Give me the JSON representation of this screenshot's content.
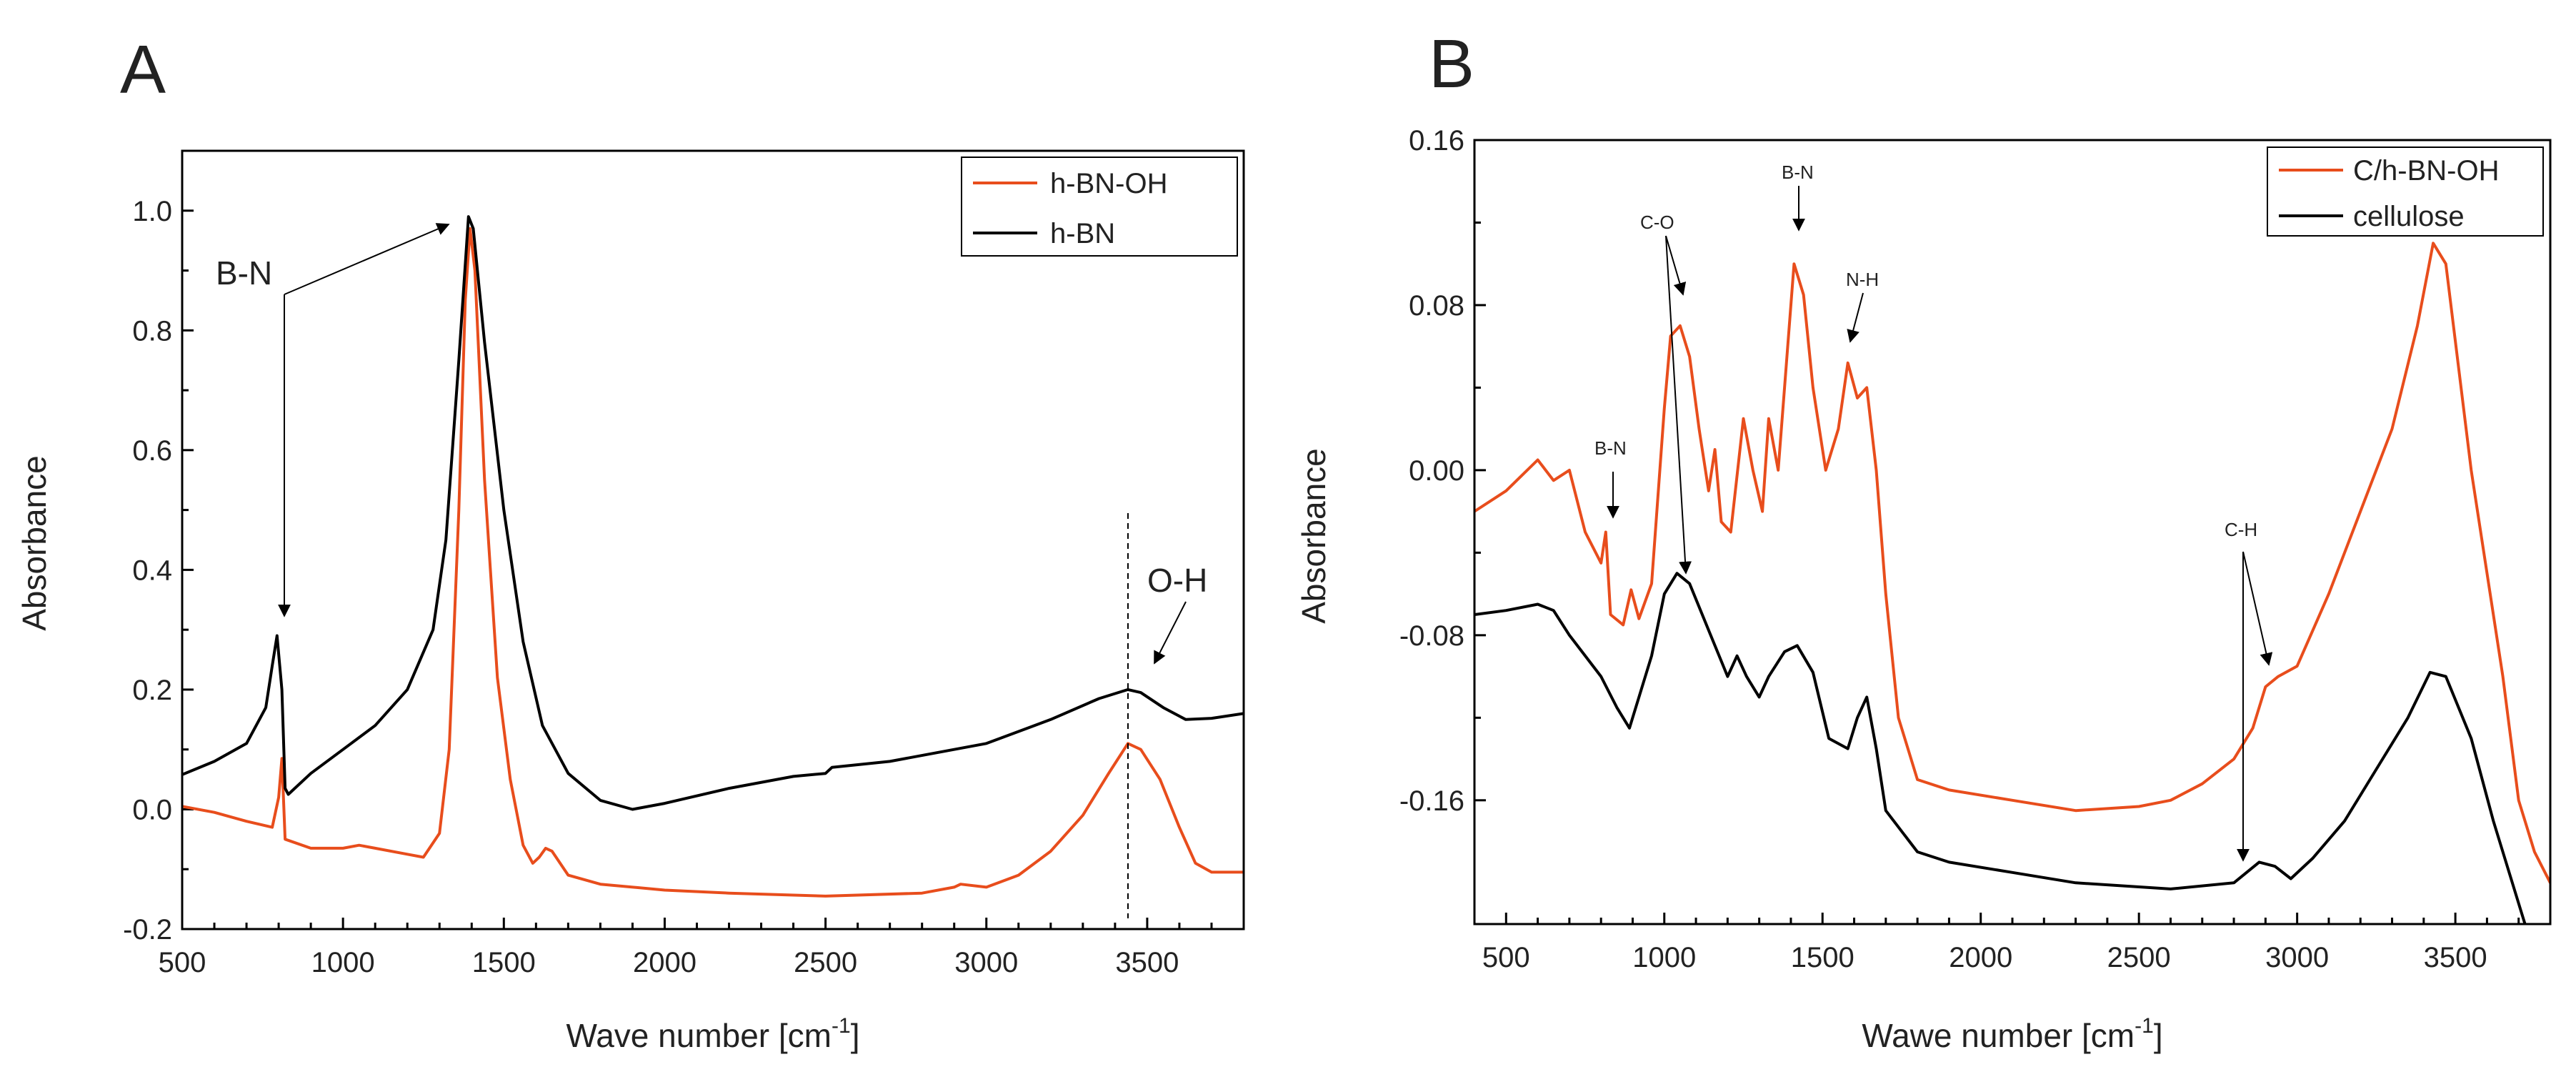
{
  "chart_data": [
    {
      "type": "line",
      "panel": "A",
      "xlabel": "Wave number [cm",
      "xlabel_sup": "-1",
      "xlabel_tail": "]",
      "ylabel": "Absorbance",
      "xlim": [
        500,
        3800
      ],
      "ylim": [
        -0.2,
        1.1
      ],
      "xticks": [
        500,
        1000,
        1500,
        2000,
        2500,
        3000,
        3500
      ],
      "xtick_labels": [
        "500",
        "1000",
        "1500",
        "2000",
        "2500",
        "3000",
        "3500"
      ],
      "yticks": [
        -0.2,
        0.0,
        0.2,
        0.4,
        0.6,
        0.8,
        1.0
      ],
      "ytick_labels": [
        "-0.2",
        "0.0",
        "0.2",
        "0.4",
        "0.6",
        "0.8",
        "1.0"
      ],
      "legend_position": "top-right",
      "series": [
        {
          "name": "h-BN-OH",
          "color": "#e84d1c",
          "points": [
            [
              500,
              0.005
            ],
            [
              600,
              -0.005
            ],
            [
              700,
              -0.02
            ],
            [
              780,
              -0.03
            ],
            [
              800,
              0.02
            ],
            [
              810,
              0.085
            ],
            [
              820,
              -0.05
            ],
            [
              900,
              -0.065
            ],
            [
              1000,
              -0.065
            ],
            [
              1050,
              -0.06
            ],
            [
              1100,
              -0.065
            ],
            [
              1200,
              -0.075
            ],
            [
              1250,
              -0.08
            ],
            [
              1300,
              -0.04
            ],
            [
              1330,
              0.1
            ],
            [
              1360,
              0.5
            ],
            [
              1380,
              0.85
            ],
            [
              1395,
              0.97
            ],
            [
              1410,
              0.9
            ],
            [
              1440,
              0.55
            ],
            [
              1480,
              0.22
            ],
            [
              1520,
              0.05
            ],
            [
              1560,
              -0.06
            ],
            [
              1590,
              -0.09
            ],
            [
              1610,
              -0.08
            ],
            [
              1630,
              -0.065
            ],
            [
              1650,
              -0.07
            ],
            [
              1700,
              -0.11
            ],
            [
              1800,
              -0.125
            ],
            [
              2000,
              -0.135
            ],
            [
              2200,
              -0.14
            ],
            [
              2500,
              -0.145
            ],
            [
              2800,
              -0.14
            ],
            [
              2900,
              -0.13
            ],
            [
              2920,
              -0.125
            ],
            [
              3000,
              -0.13
            ],
            [
              3100,
              -0.11
            ],
            [
              3200,
              -0.07
            ],
            [
              3300,
              -0.01
            ],
            [
              3380,
              0.06
            ],
            [
              3440,
              0.11
            ],
            [
              3480,
              0.1
            ],
            [
              3540,
              0.05
            ],
            [
              3600,
              -0.03
            ],
            [
              3650,
              -0.09
            ],
            [
              3700,
              -0.105
            ],
            [
              3800,
              -0.105
            ]
          ]
        },
        {
          "name": "h-BN",
          "color": "#000000",
          "points": [
            [
              500,
              0.058
            ],
            [
              600,
              0.08
            ],
            [
              700,
              0.11
            ],
            [
              760,
              0.17
            ],
            [
              780,
              0.24
            ],
            [
              795,
              0.29
            ],
            [
              810,
              0.2
            ],
            [
              820,
              0.035
            ],
            [
              830,
              0.025
            ],
            [
              900,
              0.06
            ],
            [
              1000,
              0.1
            ],
            [
              1100,
              0.14
            ],
            [
              1200,
              0.2
            ],
            [
              1280,
              0.3
            ],
            [
              1320,
              0.45
            ],
            [
              1360,
              0.75
            ],
            [
              1390,
              0.99
            ],
            [
              1405,
              0.97
            ],
            [
              1440,
              0.78
            ],
            [
              1500,
              0.5
            ],
            [
              1560,
              0.28
            ],
            [
              1620,
              0.14
            ],
            [
              1700,
              0.06
            ],
            [
              1800,
              0.015
            ],
            [
              1900,
              0.0
            ],
            [
              2000,
              0.01
            ],
            [
              2200,
              0.035
            ],
            [
              2400,
              0.055
            ],
            [
              2500,
              0.06
            ],
            [
              2520,
              0.07
            ],
            [
              2700,
              0.08
            ],
            [
              3000,
              0.11
            ],
            [
              3200,
              0.15
            ],
            [
              3350,
              0.185
            ],
            [
              3440,
              0.2
            ],
            [
              3480,
              0.195
            ],
            [
              3550,
              0.17
            ],
            [
              3620,
              0.15
            ],
            [
              3700,
              0.152
            ],
            [
              3800,
              0.16
            ]
          ]
        }
      ],
      "annotations": [
        "B-N",
        "O-H"
      ]
    },
    {
      "type": "line",
      "panel": "B",
      "xlabel": "Wawe number [cm",
      "xlabel_sup": "-1",
      "xlabel_tail": "]",
      "ylabel": "Absorbance",
      "xlim": [
        400,
        3800
      ],
      "ylim": [
        -0.22,
        0.16
      ],
      "xticks": [
        500,
        1000,
        1500,
        2000,
        2500,
        3000,
        3500
      ],
      "xtick_labels": [
        "500",
        "1000",
        "1500",
        "2000",
        "2500",
        "3000",
        "3500"
      ],
      "yticks": [
        -0.16,
        -0.08,
        0.0,
        0.08,
        0.16
      ],
      "ytick_labels": [
        "-0.16",
        "-0.08",
        "0.00",
        "0.08",
        "0.16"
      ],
      "legend_position": "top-right",
      "series": [
        {
          "name": "C/h-BN-OH",
          "color": "#e84d1c",
          "points": [
            [
              400,
              -0.02
            ],
            [
              500,
              -0.01
            ],
            [
              600,
              0.005
            ],
            [
              650,
              -0.005
            ],
            [
              700,
              0.0
            ],
            [
              750,
              -0.03
            ],
            [
              800,
              -0.045
            ],
            [
              815,
              -0.03
            ],
            [
              830,
              -0.07
            ],
            [
              870,
              -0.075
            ],
            [
              895,
              -0.058
            ],
            [
              920,
              -0.072
            ],
            [
              960,
              -0.055
            ],
            [
              1000,
              0.03
            ],
            [
              1020,
              0.065
            ],
            [
              1050,
              0.07
            ],
            [
              1080,
              0.055
            ],
            [
              1110,
              0.02
            ],
            [
              1140,
              -0.01
            ],
            [
              1160,
              0.01
            ],
            [
              1180,
              -0.025
            ],
            [
              1210,
              -0.03
            ],
            [
              1250,
              0.025
            ],
            [
              1280,
              0.0
            ],
            [
              1310,
              -0.02
            ],
            [
              1330,
              0.025
            ],
            [
              1360,
              0.0
            ],
            [
              1410,
              0.1
            ],
            [
              1440,
              0.085
            ],
            [
              1470,
              0.04
            ],
            [
              1510,
              0.0
            ],
            [
              1550,
              0.02
            ],
            [
              1580,
              0.052
            ],
            [
              1610,
              0.035
            ],
            [
              1640,
              0.04
            ],
            [
              1670,
              0.0
            ],
            [
              1700,
              -0.06
            ],
            [
              1740,
              -0.12
            ],
            [
              1800,
              -0.15
            ],
            [
              1900,
              -0.155
            ],
            [
              2100,
              -0.16
            ],
            [
              2300,
              -0.165
            ],
            [
              2500,
              -0.163
            ],
            [
              2600,
              -0.16
            ],
            [
              2700,
              -0.152
            ],
            [
              2800,
              -0.14
            ],
            [
              2860,
              -0.125
            ],
            [
              2900,
              -0.105
            ],
            [
              2940,
              -0.1
            ],
            [
              3000,
              -0.095
            ],
            [
              3100,
              -0.06
            ],
            [
              3200,
              -0.02
            ],
            [
              3300,
              0.02
            ],
            [
              3380,
              0.07
            ],
            [
              3430,
              0.11
            ],
            [
              3470,
              0.1
            ],
            [
              3550,
              0.0
            ],
            [
              3650,
              -0.1
            ],
            [
              3700,
              -0.16
            ],
            [
              3750,
              -0.185
            ],
            [
              3800,
              -0.2
            ]
          ]
        },
        {
          "name": "cellulose",
          "color": "#000000",
          "points": [
            [
              400,
              -0.07
            ],
            [
              500,
              -0.068
            ],
            [
              600,
              -0.065
            ],
            [
              650,
              -0.068
            ],
            [
              700,
              -0.08
            ],
            [
              800,
              -0.1
            ],
            [
              850,
              -0.115
            ],
            [
              890,
              -0.125
            ],
            [
              920,
              -0.11
            ],
            [
              960,
              -0.09
            ],
            [
              1000,
              -0.06
            ],
            [
              1040,
              -0.05
            ],
            [
              1080,
              -0.055
            ],
            [
              1120,
              -0.07
            ],
            [
              1160,
              -0.085
            ],
            [
              1200,
              -0.1
            ],
            [
              1230,
              -0.09
            ],
            [
              1260,
              -0.1
            ],
            [
              1300,
              -0.11
            ],
            [
              1330,
              -0.1
            ],
            [
              1380,
              -0.088
            ],
            [
              1420,
              -0.085
            ],
            [
              1470,
              -0.098
            ],
            [
              1520,
              -0.13
            ],
            [
              1580,
              -0.135
            ],
            [
              1610,
              -0.12
            ],
            [
              1640,
              -0.11
            ],
            [
              1670,
              -0.135
            ],
            [
              1700,
              -0.165
            ],
            [
              1800,
              -0.185
            ],
            [
              1900,
              -0.19
            ],
            [
              2100,
              -0.195
            ],
            [
              2300,
              -0.2
            ],
            [
              2600,
              -0.203
            ],
            [
              2800,
              -0.2
            ],
            [
              2880,
              -0.19
            ],
            [
              2930,
              -0.192
            ],
            [
              2980,
              -0.198
            ],
            [
              3050,
              -0.188
            ],
            [
              3150,
              -0.17
            ],
            [
              3250,
              -0.145
            ],
            [
              3350,
              -0.12
            ],
            [
              3420,
              -0.098
            ],
            [
              3470,
              -0.1
            ],
            [
              3550,
              -0.13
            ],
            [
              3620,
              -0.17
            ],
            [
              3700,
              -0.21
            ],
            [
              3720,
              -0.22
            ]
          ]
        }
      ],
      "annotations": [
        "C-O",
        "B-N",
        "N-H",
        "B-N",
        "C-H"
      ]
    }
  ]
}
